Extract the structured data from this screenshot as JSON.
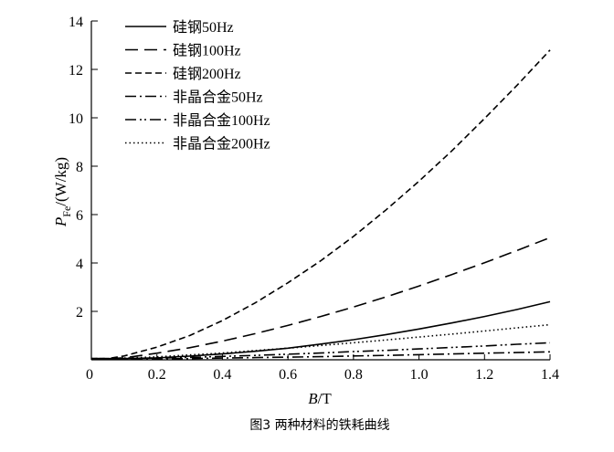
{
  "chart_data": {
    "type": "line",
    "caption": "图3  两种材料的铁耗曲线",
    "xlabel_italic": "B",
    "xlabel_unit": "/T",
    "ylabel_main": "P",
    "ylabel_sub": "Fe",
    "ylabel_unit": "/(W/kg)",
    "xlim": [
      0,
      1.4
    ],
    "ylim": [
      0,
      14
    ],
    "xticks": [
      "0",
      "0.2",
      "0.4",
      "0.6",
      "0.8",
      "1.0",
      "1.2",
      "1.4"
    ],
    "yticks": [
      "2",
      "4",
      "6",
      "8",
      "10",
      "12",
      "14"
    ],
    "grid": false,
    "legend_position": "top-left",
    "x": [
      0.05,
      0.1,
      0.2,
      0.3,
      0.4,
      0.5,
      0.6,
      0.7,
      0.8,
      0.9,
      1.0,
      1.1,
      1.2,
      1.3,
      1.4
    ],
    "series": [
      {
        "name": "硅钢50Hz",
        "dash": "solid",
        "values": [
          0.05,
          0.05,
          0.08,
          0.15,
          0.24,
          0.35,
          0.48,
          0.65,
          0.83,
          1.04,
          1.27,
          1.52,
          1.79,
          2.08,
          2.4
        ]
      },
      {
        "name": "硅钢100Hz",
        "dash": "long-dash",
        "values": [
          0.05,
          0.08,
          0.27,
          0.5,
          0.77,
          1.08,
          1.42,
          1.79,
          2.18,
          2.6,
          3.05,
          3.52,
          4.01,
          4.52,
          5.05
        ]
      },
      {
        "name": "硅钢200Hz",
        "dash": "short-dash",
        "values": [
          0.05,
          0.16,
          0.52,
          1.0,
          1.62,
          2.35,
          3.18,
          4.09,
          5.1,
          6.2,
          7.38,
          8.63,
          9.97,
          11.35,
          12.8
        ]
      },
      {
        "name": "非晶合金50Hz",
        "dash": "dash-dot",
        "values": [
          0.03,
          0.03,
          0.04,
          0.05,
          0.07,
          0.09,
          0.11,
          0.13,
          0.16,
          0.18,
          0.21,
          0.24,
          0.27,
          0.3,
          0.33
        ]
      },
      {
        "name": "非晶合金100Hz",
        "dash": "dash-dot-dot",
        "values": [
          0.04,
          0.05,
          0.07,
          0.1,
          0.14,
          0.18,
          0.23,
          0.28,
          0.34,
          0.39,
          0.45,
          0.51,
          0.57,
          0.64,
          0.7
        ]
      },
      {
        "name": "非晶合金200Hz",
        "dash": "dotted",
        "values": [
          0.05,
          0.07,
          0.12,
          0.2,
          0.28,
          0.38,
          0.48,
          0.59,
          0.7,
          0.82,
          0.94,
          1.06,
          1.19,
          1.32,
          1.45
        ]
      }
    ]
  }
}
